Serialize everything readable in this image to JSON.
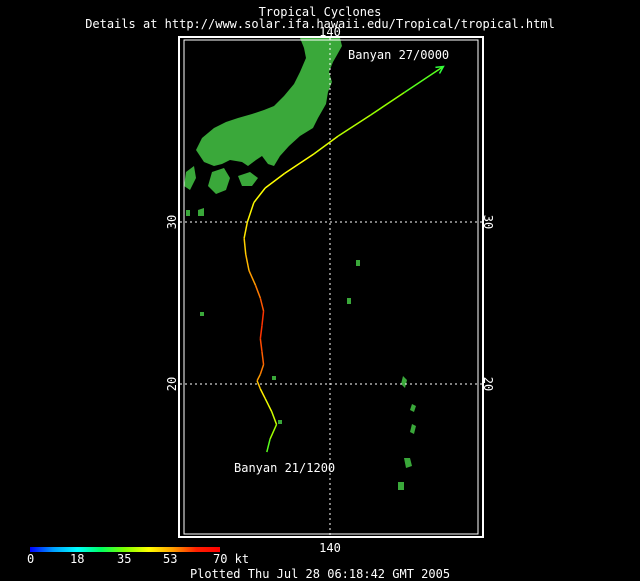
{
  "header": {
    "title": "Tropical Cyclones",
    "details": "Details at http://www.solar.ifa.hawaii.edu/Tropical/tropical.html"
  },
  "map": {
    "land_color": "#3aa83a",
    "border_color": "#ffffff",
    "grid_color": "#ffffff",
    "longitude_labels": {
      "top": "140",
      "bottom": "140"
    },
    "latitude_labels": [
      "30",
      "20"
    ],
    "track": {
      "name": "Banyan",
      "start_label": "Banyan 21/1200",
      "end_label": "Banyan 27/0000",
      "points": [
        {
          "lon": 136.1,
          "lat": 15.8,
          "kt": 30
        },
        {
          "lon": 136.3,
          "lat": 16.6,
          "kt": 35
        },
        {
          "lon": 136.7,
          "lat": 17.5,
          "kt": 40
        },
        {
          "lon": 136.4,
          "lat": 18.3,
          "kt": 42
        },
        {
          "lon": 136.0,
          "lat": 19.1,
          "kt": 45
        },
        {
          "lon": 135.7,
          "lat": 19.7,
          "kt": 48
        },
        {
          "lon": 135.5,
          "lat": 20.2,
          "kt": 52
        },
        {
          "lon": 135.7,
          "lat": 20.6,
          "kt": 55
        },
        {
          "lon": 135.9,
          "lat": 21.2,
          "kt": 58
        },
        {
          "lon": 135.8,
          "lat": 22.0,
          "kt": 60
        },
        {
          "lon": 135.7,
          "lat": 22.8,
          "kt": 62
        },
        {
          "lon": 135.8,
          "lat": 23.6,
          "kt": 65
        },
        {
          "lon": 135.9,
          "lat": 24.5,
          "kt": 62
        },
        {
          "lon": 135.7,
          "lat": 25.3,
          "kt": 58
        },
        {
          "lon": 135.4,
          "lat": 26.1,
          "kt": 55
        },
        {
          "lon": 135.0,
          "lat": 27.0,
          "kt": 52
        },
        {
          "lon": 134.8,
          "lat": 28.0,
          "kt": 50
        },
        {
          "lon": 134.7,
          "lat": 29.0,
          "kt": 48
        },
        {
          "lon": 134.9,
          "lat": 30.0,
          "kt": 46
        },
        {
          "lon": 135.3,
          "lat": 31.2,
          "kt": 45
        },
        {
          "lon": 136.0,
          "lat": 32.1,
          "kt": 45
        },
        {
          "lon": 137.2,
          "lat": 33.0,
          "kt": 45
        },
        {
          "lon": 139.0,
          "lat": 34.2,
          "kt": 45
        },
        {
          "lon": 140.5,
          "lat": 35.3,
          "kt": 40
        },
        {
          "lon": 142.5,
          "lat": 36.6,
          "kt": 38
        },
        {
          "lon": 144.6,
          "lat": 38.0,
          "kt": 35
        },
        {
          "lon": 147.0,
          "lat": 39.6,
          "kt": 30
        }
      ]
    }
  },
  "wind_scale": {
    "labels": [
      "0",
      "18",
      "35",
      "53",
      "70 kt"
    ]
  },
  "footer": {
    "plotted": "Plotted Thu Jul 28 06:18:42 GMT 2005"
  }
}
